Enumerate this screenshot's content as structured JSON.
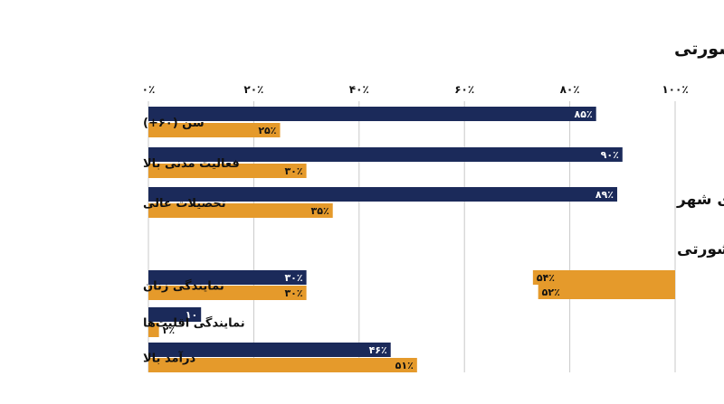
{
  "chart_data": {
    "type": "bar",
    "orientation": "horizontal",
    "direction": "rtl",
    "title": "مقایسه جمعیت‌شناختی: جلسات سنتی شورای شهر در برابر نظرسنجی مشورتی",
    "xlim": [
      0,
      100
    ],
    "ticks": [
      "۰٪",
      "۲۰٪",
      "۴۰٪",
      "۶۰٪",
      "۸۰٪",
      "۱۰۰٪"
    ],
    "tick_values": [
      0,
      20,
      40,
      60,
      80,
      100
    ],
    "grid": true,
    "legend_position": "right-middle",
    "colors": {
      "council": "#1b2a5a",
      "survey": "#e59a2b",
      "grid": "#c9c9c9",
      "text": "#111111"
    },
    "series": [
      {
        "name": "جلسات سنتی شورای شهر",
        "color": "#1b2a5a",
        "values": [
          85,
          90,
          89,
          30,
          10,
          46
        ],
        "labels": [
          "۸۵٪",
          "۹۰٪",
          "۸۹٪",
          "۳۰٪",
          "۱۰",
          "۴۶٪"
        ]
      },
      {
        "name": "نظرسنجی مشورتی",
        "color": "#e59a2b",
        "values": [
          25,
          30,
          35,
          30,
          2,
          51
        ],
        "labels": [
          "۲۵٪",
          "۳۰٪",
          "۳۵٪",
          "۳۰٪",
          "۲٪",
          "۵۱٪"
        ]
      }
    ],
    "categories": [
      "سن (۶۰+)",
      "فعالیت مدنی بالا",
      "تحصیلات عالی",
      "نمایندگی زنان",
      "نمایندگی اقلیت‌ها",
      "درآمد بالا"
    ],
    "legend_bars": [
      {
        "value": 54,
        "label": "۵۴٪"
      },
      {
        "value": 52,
        "label": "۵۲٪"
      }
    ]
  }
}
